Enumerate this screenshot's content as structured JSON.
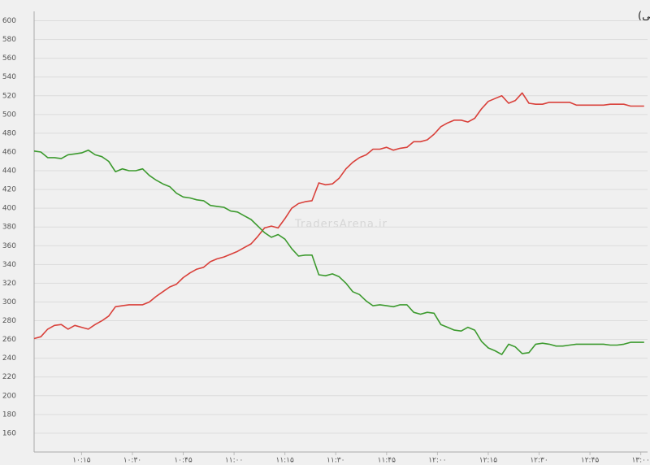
{
  "chart_data": {
    "type": "line",
    "title": "نمادهای مثبت و منفی (سهام حق تقدم و صندوق های سهامی)",
    "watermark": "TradersArena.ir",
    "x": [
      601,
      603,
      605,
      607,
      609,
      611,
      613,
      615,
      617,
      619,
      621,
      623,
      625,
      627,
      629,
      631,
      633,
      635,
      637,
      639,
      641,
      643,
      645,
      647,
      649,
      651,
      653,
      655,
      657,
      659,
      661,
      663,
      665,
      667,
      669,
      671,
      673,
      675,
      677,
      679,
      681,
      683,
      685,
      687,
      689,
      691,
      693,
      695,
      697,
      699,
      701,
      703,
      705,
      707,
      709,
      711,
      713,
      715,
      717,
      719,
      721,
      723,
      725,
      727,
      729,
      731,
      733,
      735,
      737,
      739,
      741,
      743,
      745,
      747,
      749,
      751,
      753,
      755,
      757,
      759,
      761,
      763,
      765,
      767,
      769,
      771,
      773,
      775,
      777,
      779,
      781
    ],
    "series": [
      {
        "color": "#d9403a",
        "values": [
          261,
          263,
          271,
          275,
          276,
          271,
          275,
          273,
          271,
          276,
          280,
          285,
          295,
          296,
          297,
          297,
          297,
          300,
          306,
          311,
          316,
          319,
          326,
          331,
          335,
          337,
          343,
          346,
          348,
          351,
          354,
          358,
          362,
          370,
          379,
          381,
          379,
          389,
          400,
          405,
          407,
          408,
          427,
          425,
          426,
          432,
          442,
          449,
          454,
          457,
          463,
          463,
          465,
          462,
          464,
          465,
          471,
          471,
          473,
          479,
          487,
          491,
          494,
          494,
          492,
          496,
          506,
          514,
          517,
          520,
          512,
          515,
          523,
          512,
          511,
          511,
          513,
          513,
          513,
          513,
          510,
          510,
          510,
          510,
          510,
          511,
          511,
          511,
          509,
          509,
          509
        ]
      },
      {
        "color": "#3c9a2e",
        "values": [
          461,
          460,
          454,
          454,
          453,
          457,
          458,
          459,
          462,
          457,
          455,
          450,
          439,
          442,
          440,
          440,
          442,
          435,
          430,
          426,
          423,
          416,
          412,
          411,
          409,
          408,
          403,
          402,
          401,
          397,
          396,
          392,
          388,
          381,
          374,
          369,
          372,
          367,
          357,
          349,
          350,
          350,
          329,
          328,
          330,
          327,
          320,
          311,
          308,
          301,
          296,
          297,
          296,
          295,
          297,
          297,
          289,
          287,
          289,
          288,
          276,
          273,
          270,
          269,
          273,
          270,
          258,
          251,
          248,
          244,
          255,
          252,
          245,
          246,
          255,
          256,
          255,
          253,
          253,
          254,
          255,
          255,
          255,
          255,
          255,
          254,
          254,
          255,
          257,
          257,
          257
        ]
      }
    ],
    "xlim": [
      601,
      782
    ],
    "xticks": [
      {
        "value": 615,
        "label": "۱۰:۱۵"
      },
      {
        "value": 630,
        "label": "۱۰:۳۰"
      },
      {
        "value": 645,
        "label": "۱۰:۴۵"
      },
      {
        "value": 660,
        "label": "۱۱:۰۰"
      },
      {
        "value": 675,
        "label": "۱۱:۱۵"
      },
      {
        "value": 690,
        "label": "۱۱:۳۰"
      },
      {
        "value": 705,
        "label": "۱۱:۴۵"
      },
      {
        "value": 720,
        "label": "۱۲:۰۰"
      },
      {
        "value": 735,
        "label": "۱۲:۱۵"
      },
      {
        "value": 750,
        "label": "۱۲:۳۰"
      },
      {
        "value": 765,
        "label": "۱۲:۴۵"
      },
      {
        "value": 780,
        "label": "۱۳:۰۰"
      }
    ],
    "ylim": [
      140,
      610
    ],
    "yticks": [
      160,
      180,
      200,
      220,
      240,
      260,
      280,
      300,
      320,
      340,
      360,
      380,
      400,
      420,
      440,
      460,
      480,
      500,
      520,
      540,
      560,
      580,
      600
    ],
    "grid": true
  }
}
